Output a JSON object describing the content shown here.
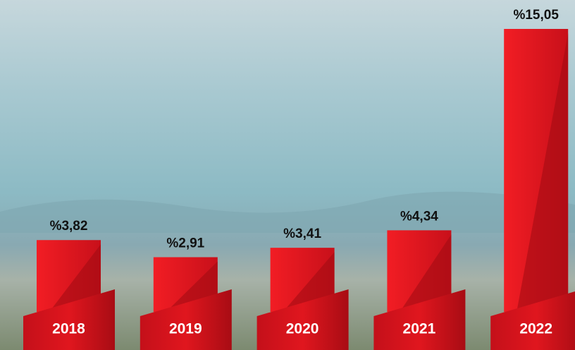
{
  "chart_data": {
    "type": "bar",
    "categories": [
      "2018",
      "2019",
      "2020",
      "2021",
      "2022"
    ],
    "values": [
      3.82,
      2.91,
      3.41,
      4.34,
      15.05
    ],
    "value_labels": [
      "%3,82",
      "%2,91",
      "%3,41",
      "%4,34",
      "%15,05"
    ],
    "color": "#e3161d"
  }
}
